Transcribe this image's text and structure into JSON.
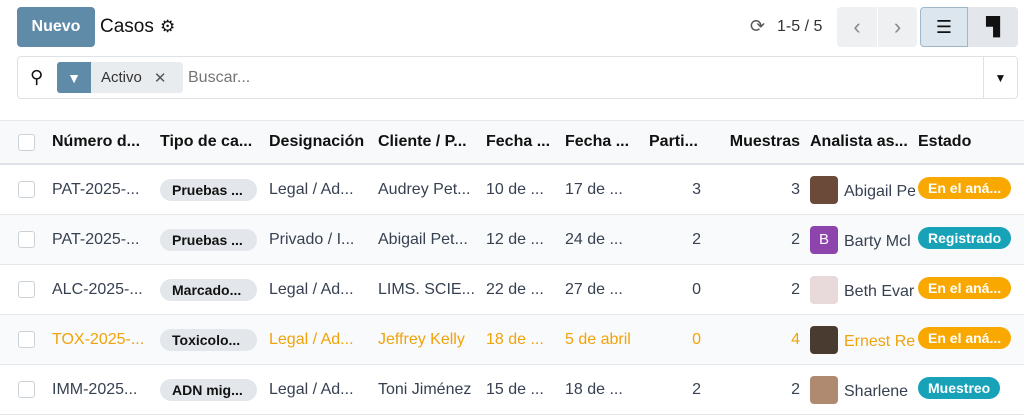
{
  "header": {
    "new_label": "Nuevo",
    "title": "Casos",
    "pager": "1-5 / 5"
  },
  "search": {
    "facet": "Activo",
    "placeholder": "Buscar..."
  },
  "columns": [
    "Número d...",
    "Tipo de ca...",
    "Designación",
    "Cliente / P...",
    "Fecha ...",
    "Fecha ...",
    "Parti...",
    "Muestras",
    "Analista as...",
    "Estado"
  ],
  "rows": [
    {
      "num": "PAT-2025-...",
      "tipo": "Pruebas ...",
      "desig": "Legal / Ad...",
      "cliente": "Audrey Pet...",
      "f1": "10 de ...",
      "f2": "17 de ...",
      "parti": "3",
      "muestras": "3",
      "analista": "Abigail Pe",
      "initial": "",
      "avatar": "#6b4a3a",
      "estado": "En el aná...",
      "estado_color": "#f9a800",
      "highlight": false
    },
    {
      "num": "PAT-2025-...",
      "tipo": "Pruebas ...",
      "desig": "Privado / I...",
      "cliente": "Abigail Pet...",
      "f1": "12 de ...",
      "f2": "24 de ...",
      "parti": "2",
      "muestras": "2",
      "analista": "Barty Mcl",
      "initial": "B",
      "avatar": "#8e44ad",
      "estado": "Registrado",
      "estado_color": "#17a2b8",
      "highlight": false
    },
    {
      "num": "ALC-2025-...",
      "tipo": "Marcado...",
      "desig": "Legal / Ad...",
      "cliente": "LIMS. SCIE...",
      "f1": "22 de ...",
      "f2": "27 de ...",
      "parti": "0",
      "muestras": "2",
      "analista": "Beth Evar",
      "initial": "",
      "avatar": "#e8dada",
      "estado": "En el aná...",
      "estado_color": "#f9a800",
      "highlight": false
    },
    {
      "num": "TOX-2025-...",
      "tipo": "Toxicolo...",
      "desig": "Legal / Ad...",
      "cliente": "Jeffrey Kelly",
      "f1": "18 de ...",
      "f2": "5 de abril",
      "parti": "0",
      "muestras": "4",
      "analista": "Ernest Re",
      "initial": "",
      "avatar": "#4a3b30",
      "estado": "En el aná...",
      "estado_color": "#f9a800",
      "highlight": true
    },
    {
      "num": "IMM-2025...",
      "tipo": "ADN mig...",
      "desig": "Legal / Ad...",
      "cliente": "Toni Jiménez",
      "f1": "15 de ...",
      "f2": "18 de ...",
      "parti": "2",
      "muestras": "2",
      "analista": "Sharlene",
      "initial": "",
      "avatar": "#b08a70",
      "estado": "Muestreo",
      "estado_color": "#17a2b8",
      "highlight": false
    }
  ]
}
